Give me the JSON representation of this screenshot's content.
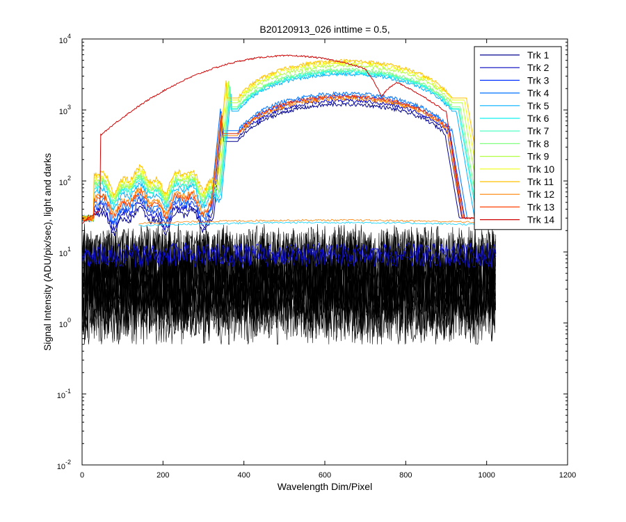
{
  "chart_data": {
    "type": "line",
    "title": "B20120913_026 inttime = 0.5,",
    "xlabel": "Wavelength Dim/Pixel",
    "ylabel": "Signal Intensity (ADU/pix/sec), light and darks",
    "xlim": [
      0,
      1200
    ],
    "ylim": [
      0.01,
      10000
    ],
    "yscale": "log",
    "grid": false,
    "x_ticks": [
      "0",
      "200",
      "400",
      "600",
      "800",
      "1000",
      "1200"
    ],
    "y_ticks": [
      {
        "base": "10",
        "exp": "-2"
      },
      {
        "base": "10",
        "exp": "-1"
      },
      {
        "base": "10",
        "exp": "0"
      },
      {
        "base": "10",
        "exp": "1"
      },
      {
        "base": "10",
        "exp": "2"
      },
      {
        "base": "10",
        "exp": "3"
      },
      {
        "base": "10",
        "exp": "4"
      }
    ],
    "legend_position": "top-right",
    "series": [
      {
        "name": "Trk 1",
        "color": "#00008F",
        "low": 30,
        "high": 1200,
        "jump": 325,
        "fall": 900
      },
      {
        "name": "Trk 2",
        "color": "#0000BF",
        "low": 35,
        "high": 1350,
        "jump": 322,
        "fall": 905
      },
      {
        "name": "Trk 3",
        "color": "#0030FF",
        "low": 40,
        "high": 1550,
        "jump": 320,
        "fall": 910
      },
      {
        "name": "Trk 4",
        "color": "#0070FF",
        "low": 45,
        "high": 1700,
        "jump": 318,
        "fall": 915
      },
      {
        "name": "Trk 5",
        "color": "#00B0FF",
        "low": 65,
        "high": 3200,
        "jump": 345,
        "fall": 925
      },
      {
        "name": "Trk 6",
        "color": "#10F0EF",
        "low": 75,
        "high": 3400,
        "jump": 343,
        "fall": 930
      },
      {
        "name": "Trk 7",
        "color": "#40FFBF",
        "low": 80,
        "high": 3500,
        "jump": 342,
        "fall": 932
      },
      {
        "name": "Trk 8",
        "color": "#80FF80",
        "low": 85,
        "high": 3700,
        "jump": 340,
        "fall": 935
      },
      {
        "name": "Trk 9",
        "color": "#B0FF40",
        "low": 90,
        "high": 4200,
        "jump": 338,
        "fall": 940
      },
      {
        "name": "Trk 10",
        "color": "#EFFF10",
        "low": 100,
        "high": 4600,
        "jump": 335,
        "fall": 945
      },
      {
        "name": "Trk 11",
        "color": "#FFC000",
        "low": 110,
        "high": 4900,
        "jump": 333,
        "fall": 950
      },
      {
        "name": "Trk 12",
        "color": "#FF8000",
        "low": 55,
        "high": 1450,
        "jump": 320,
        "fall": 905
      },
      {
        "name": "Trk 13",
        "color": "#FF4000",
        "low": 50,
        "high": 1550,
        "jump": 321,
        "fall": 908
      },
      {
        "name": "Trk 14",
        "color": "#D00000",
        "low": 40,
        "high": 5800,
        "jump": 40,
        "fall": 960
      }
    ],
    "darks": {
      "color": "#000000",
      "count": 14,
      "xmax": 1023
    }
  }
}
